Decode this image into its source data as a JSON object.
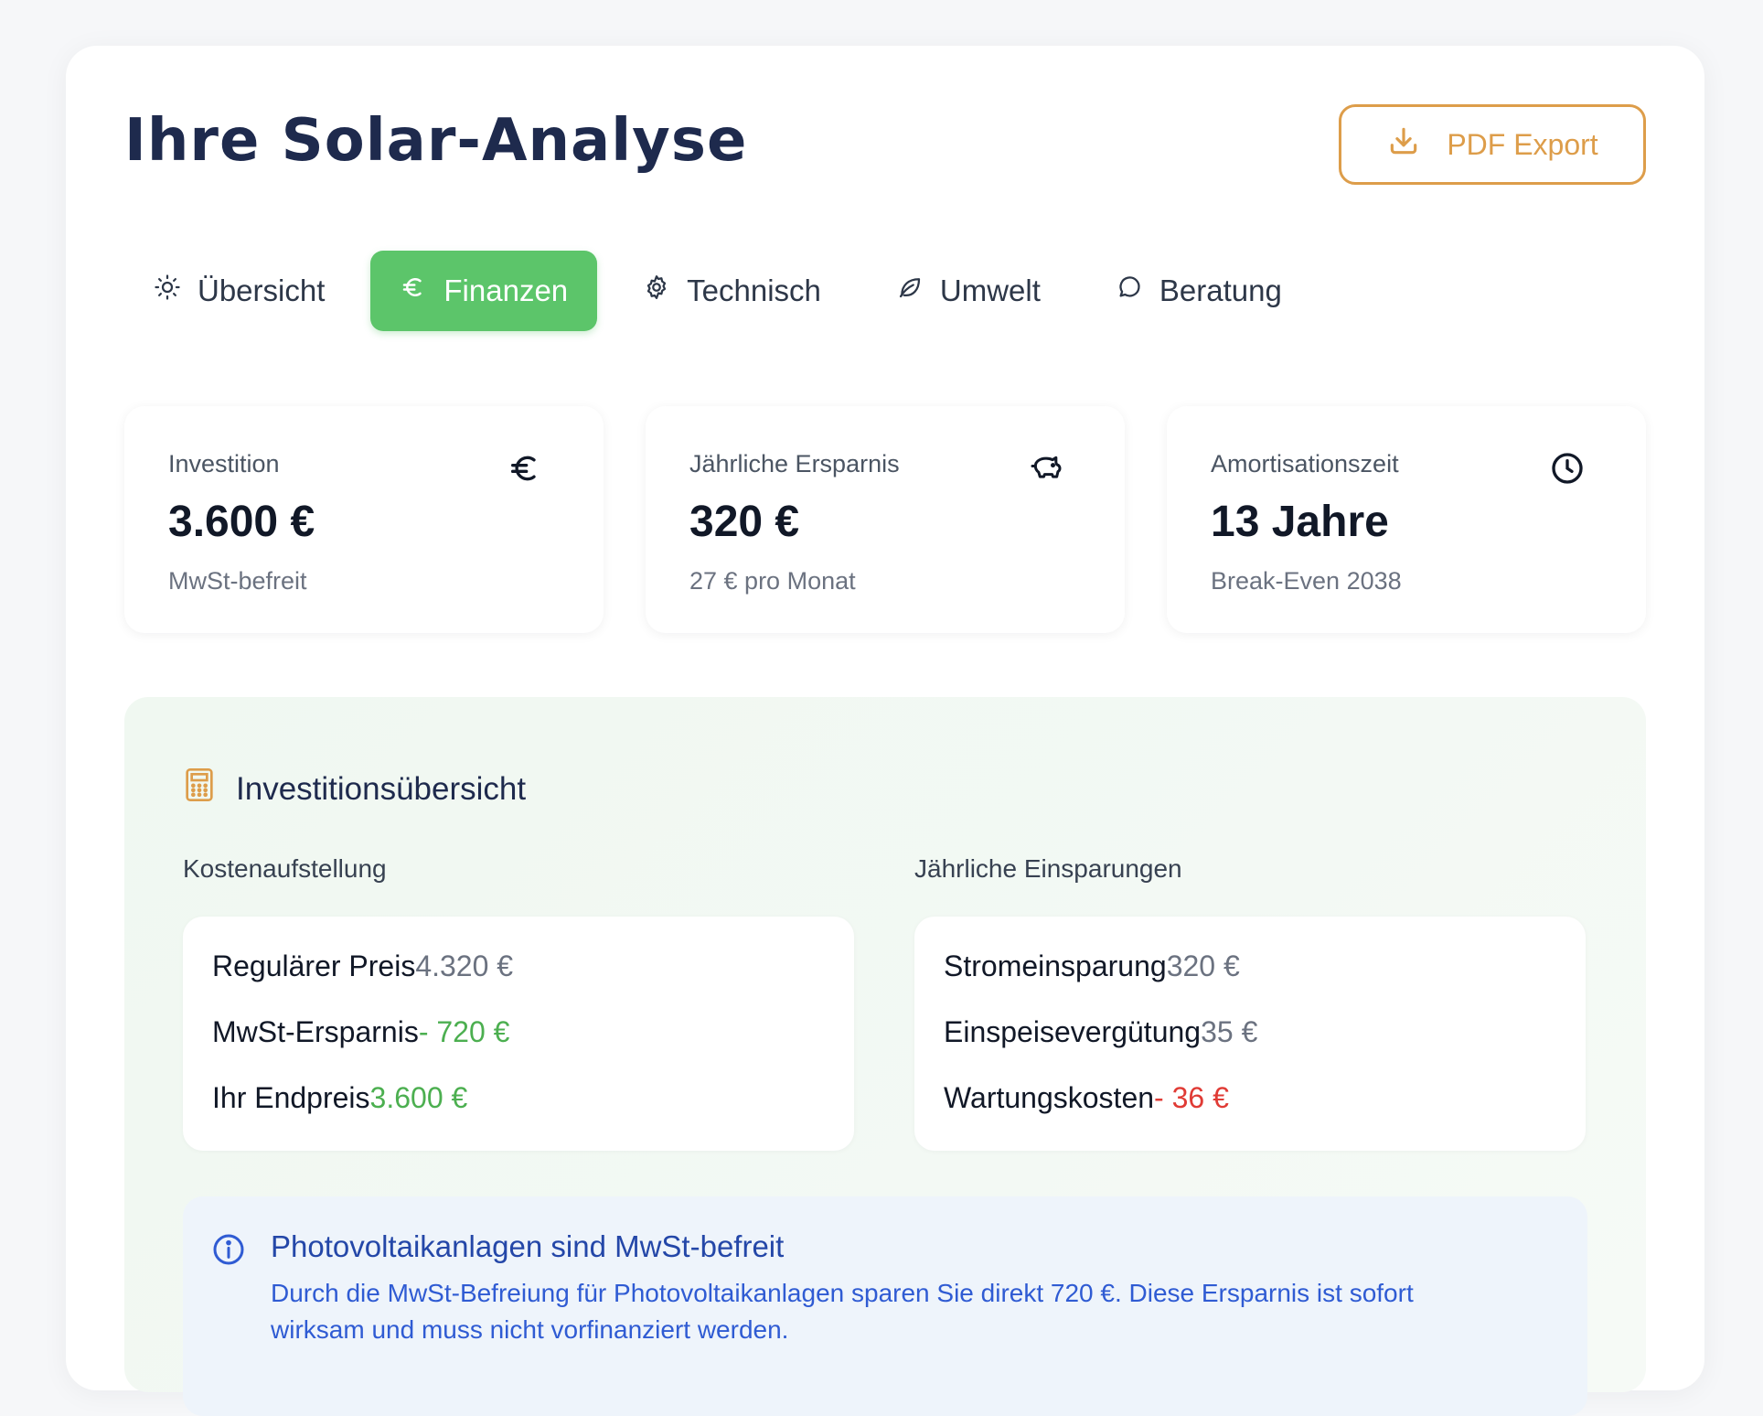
{
  "header": {
    "title": "Ihre Solar-Analyse",
    "export_label": "PDF Export"
  },
  "tabs": [
    {
      "label": "Übersicht",
      "icon": "sun-icon",
      "active": false
    },
    {
      "label": "Finanzen",
      "icon": "euro-icon",
      "active": true
    },
    {
      "label": "Technisch",
      "icon": "gear-icon",
      "active": false
    },
    {
      "label": "Umwelt",
      "icon": "leaf-icon",
      "active": false
    },
    {
      "label": "Beratung",
      "icon": "chat-icon",
      "active": false
    }
  ],
  "stats": [
    {
      "label": "Investition",
      "value": "3.600 €",
      "sub": "MwSt-befreit",
      "icon": "euro-icon"
    },
    {
      "label": "Jährliche Ersparnis",
      "value": "320 €",
      "sub": "27 € pro Monat",
      "icon": "piggy-bank-icon"
    },
    {
      "label": "Amortisationszeit",
      "value": "13 Jahre",
      "sub": "Break-Even 2038",
      "icon": "clock-icon"
    }
  ],
  "investment": {
    "title": "Investitionsübersicht",
    "costs": {
      "heading": "Kostenaufstellung",
      "rows": [
        {
          "label": "Regulärer Preis",
          "amount": "4.320 €"
        },
        {
          "label": "MwSt-Ersparnis",
          "amount": "- 720 €"
        },
        {
          "label": "Ihr Endpreis",
          "amount": "3.600 €"
        }
      ]
    },
    "savings": {
      "heading": "Jährliche Einsparungen",
      "rows": [
        {
          "label": "Stromeinsparung",
          "amount": "320 €"
        },
        {
          "label": "Einspeisevergütung",
          "amount": "35 €"
        },
        {
          "label": "Wartungskosten",
          "amount": "- 36 €"
        }
      ]
    },
    "info": {
      "title": "Photovoltaikanlagen sind MwSt-befreit",
      "text": "Durch die MwSt-Befreiung für Photovoltaikanlagen sparen Sie direkt 720 €. Diese Ersparnis ist sofort wirksam und muss nicht vorfinanziert werden."
    }
  },
  "colors": {
    "accent_green": "#5cc56a",
    "export_orange": "#dd9d4a",
    "title_navy": "#1e2a4d",
    "positive": "#4caf50",
    "negative": "#e03b35",
    "info_blue": "#2447a8"
  }
}
